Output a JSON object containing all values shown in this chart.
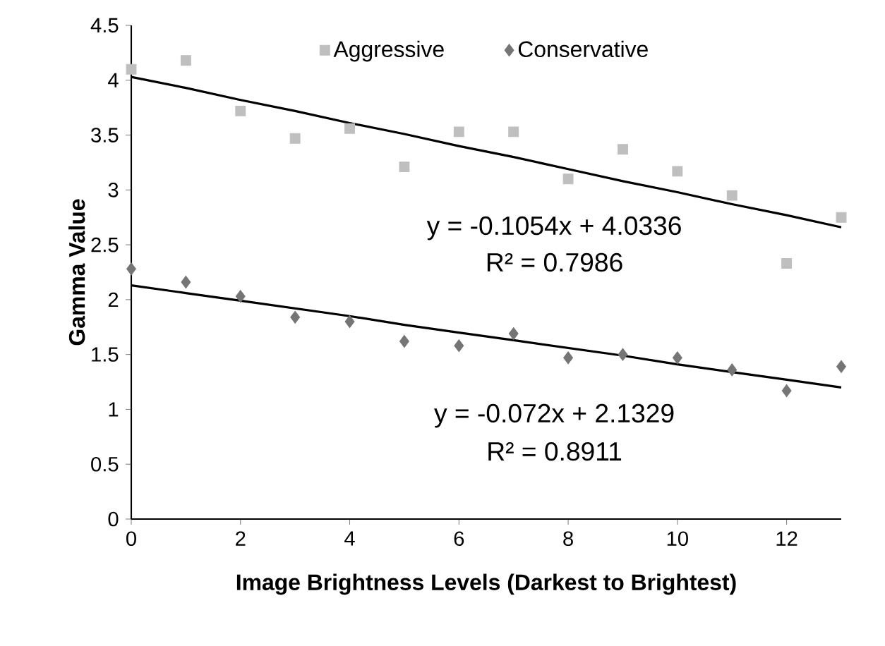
{
  "chart_data": {
    "type": "scatter",
    "xlabel": "Image Brightness Levels (Darkest to Brightest)",
    "ylabel": "Gamma Value",
    "x": [
      0,
      1,
      2,
      3,
      4,
      5,
      6,
      7,
      8,
      9,
      10,
      11,
      12,
      13
    ],
    "xlim": [
      0,
      13
    ],
    "xticks": [
      0,
      2,
      4,
      6,
      8,
      10,
      12
    ],
    "ylim": [
      0,
      4.5
    ],
    "yticks": [
      0,
      0.5,
      1,
      1.5,
      2,
      2.5,
      3,
      3.5,
      4,
      4.5
    ],
    "grid": false,
    "legend": "top",
    "series": [
      {
        "name": "Aggressive",
        "marker": "square",
        "color": "#bfbfbf",
        "values": [
          4.1,
          4.18,
          3.72,
          3.47,
          3.56,
          3.21,
          3.53,
          3.53,
          3.1,
          3.37,
          3.17,
          2.95,
          2.33,
          2.75
        ]
      },
      {
        "name": "Conservative",
        "marker": "diamond",
        "color": "#757575",
        "values": [
          2.28,
          2.16,
          2.03,
          1.84,
          1.8,
          1.62,
          1.58,
          1.69,
          1.47,
          1.5,
          1.47,
          1.36,
          1.17,
          1.39
        ]
      },
      {
        "type": "line",
        "marker": "none",
        "color": "#000000",
        "values": [
          4.03,
          3.93,
          3.82,
          3.72,
          3.61,
          3.51,
          3.4,
          3.3,
          3.19,
          3.08,
          2.98,
          2.87,
          2.77,
          2.66
        ]
      },
      {
        "type": "line",
        "marker": "none",
        "color": "#000000",
        "values": [
          2.13,
          2.06,
          1.99,
          1.92,
          1.85,
          1.77,
          1.7,
          1.63,
          1.56,
          1.49,
          1.41,
          1.34,
          1.27,
          1.2
        ]
      }
    ],
    "annotations": [
      "y = -0.1054x + 4.0336",
      "R² = 0.7986",
      "y = -0.072x + 2.1329",
      "R² = 0.8911"
    ]
  }
}
